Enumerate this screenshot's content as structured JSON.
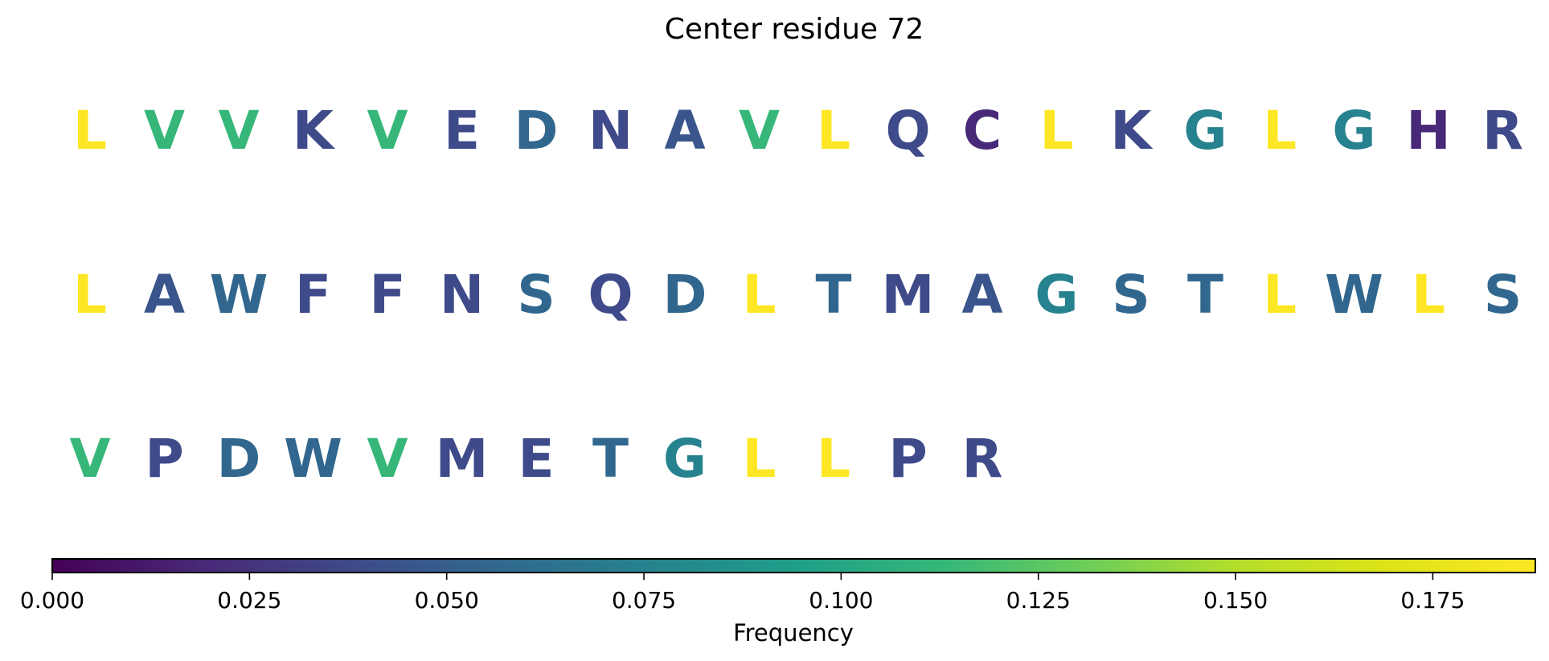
{
  "chart_data": {
    "type": "sequence-logo",
    "title": "Center residue 72",
    "rows": [
      [
        "L",
        "V",
        "V",
        "K",
        "V",
        "E",
        "D",
        "N",
        "A",
        "V",
        "L",
        "Q",
        "C",
        "L",
        "K",
        "G",
        "L",
        "G",
        "H",
        "R"
      ],
      [
        "L",
        "A",
        "W",
        "F",
        "F",
        "N",
        "S",
        "Q",
        "D",
        "L",
        "T",
        "M",
        "A",
        "G",
        "S",
        "T",
        "L",
        "W",
        "L",
        "S"
      ],
      [
        "V",
        "P",
        "D",
        "W",
        "V",
        "M",
        "E",
        "T",
        "G",
        "L",
        "L",
        "P",
        "R"
      ]
    ],
    "frequencies": {
      "L": 0.188,
      "V": 0.113,
      "G": 0.075,
      "S": 0.056,
      "D": 0.056,
      "T": 0.056,
      "W": 0.056,
      "A": 0.045,
      "F": 0.038,
      "E": 0.038,
      "N": 0.038,
      "Q": 0.038,
      "M": 0.038,
      "P": 0.038,
      "R": 0.038,
      "K": 0.038,
      "H": 0.019,
      "C": 0.019
    },
    "colormap": "viridis",
    "colorbar": {
      "label": "Frequency",
      "range": [
        0.0,
        0.188
      ],
      "ticks": [
        0.0,
        0.025,
        0.05,
        0.075,
        0.1,
        0.125,
        0.15,
        0.175
      ],
      "tick_labels": [
        "0.000",
        "0.025",
        "0.050",
        "0.075",
        "0.100",
        "0.125",
        "0.150",
        "0.175"
      ],
      "orientation": "horizontal",
      "placement": "bottom"
    }
  }
}
